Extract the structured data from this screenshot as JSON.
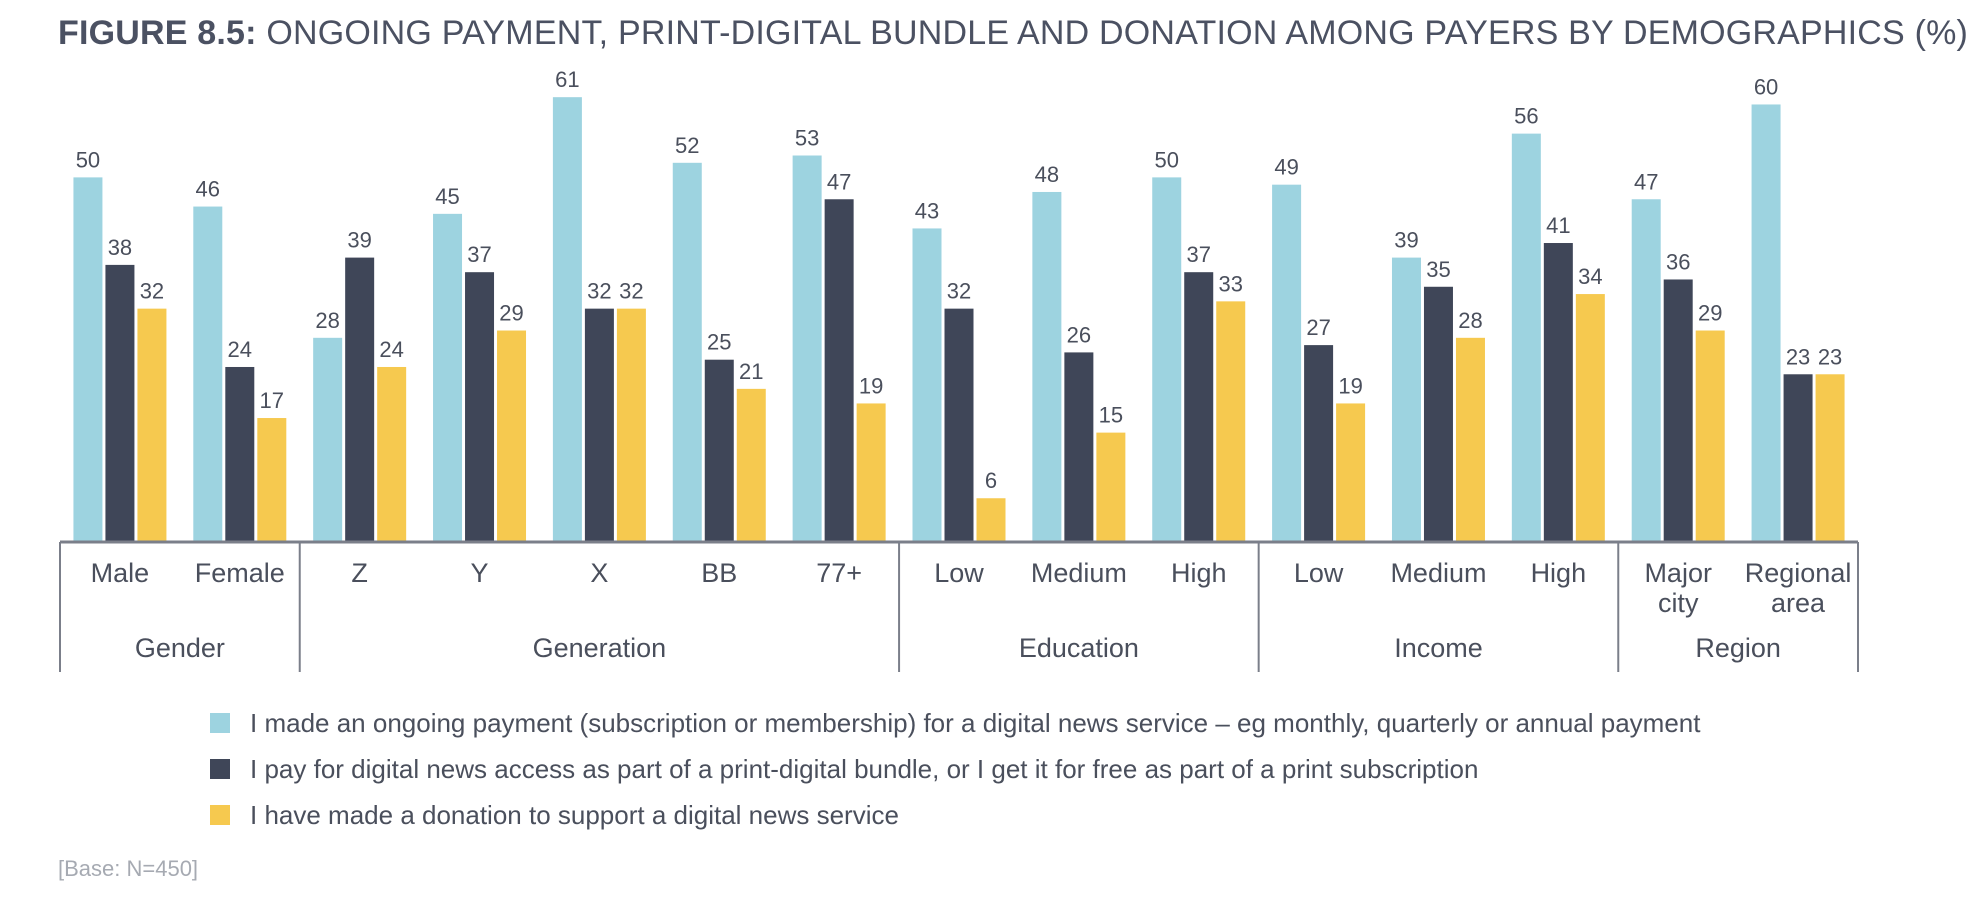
{
  "title": {
    "prefix": "FIGURE 8.5:",
    "text": " ONGOING PAYMENT, PRINT-DIGITAL BUNDLE AND DONATION AMONG PAYERS BY DEMOGRAPHICS (%)"
  },
  "note": "[Base: N=450]",
  "colors": {
    "ongoing": "#9dd3e0",
    "bundle": "#3f4658",
    "donation": "#f6c94f",
    "axis": "#7b7f8a"
  },
  "chart_data": {
    "type": "bar",
    "title": "FIGURE 8.5: ONGOING PAYMENT, PRINT-DIGITAL BUNDLE AND DONATION AMONG PAYERS BY DEMOGRAPHICS (%)",
    "ylim": [
      0,
      65
    ],
    "grid": false,
    "legend_position": "bottom",
    "groups": [
      {
        "name": "Gender",
        "categories": [
          "Male",
          "Female"
        ]
      },
      {
        "name": "Generation",
        "categories": [
          "Z",
          "Y",
          "X",
          "BB",
          "77+"
        ]
      },
      {
        "name": "Education",
        "categories": [
          "Low",
          "Medium",
          "High"
        ]
      },
      {
        "name": "Income",
        "categories": [
          "Low",
          "Medium",
          "High"
        ]
      },
      {
        "name": "Region",
        "categories": [
          "Major city",
          "Regional area"
        ]
      }
    ],
    "categories": [
      "Male",
      "Female",
      "Z",
      "Y",
      "X",
      "BB",
      "77+",
      "Low",
      "Medium",
      "High",
      "Low",
      "Medium",
      "High",
      "Major city",
      "Regional area"
    ],
    "category_lines": [
      [
        "Male"
      ],
      [
        "Female"
      ],
      [
        "Z"
      ],
      [
        "Y"
      ],
      [
        "X"
      ],
      [
        "BB"
      ],
      [
        "77+"
      ],
      [
        "Low"
      ],
      [
        "Medium"
      ],
      [
        "High"
      ],
      [
        "Low"
      ],
      [
        "Medium"
      ],
      [
        "High"
      ],
      [
        "Major",
        "city"
      ],
      [
        "Regional",
        "area"
      ]
    ],
    "series": [
      {
        "name": "I made an ongoing payment (subscription or membership) for a digital news service – eg monthly, quarterly or annual payment",
        "color": "#9dd3e0",
        "values": [
          50,
          46,
          28,
          45,
          61,
          52,
          53,
          43,
          48,
          50,
          49,
          39,
          56,
          47,
          60
        ]
      },
      {
        "name": "I pay for digital news access as part of a print-digital bundle, or I get it for free as part of a print subscription",
        "color": "#3f4658",
        "values": [
          38,
          24,
          39,
          37,
          32,
          25,
          47,
          32,
          26,
          37,
          27,
          35,
          41,
          36,
          23
        ]
      },
      {
        "name": "I have made a donation to support a digital news service",
        "color": "#f6c94f",
        "values": [
          32,
          17,
          24,
          29,
          32,
          21,
          19,
          6,
          15,
          33,
          19,
          28,
          34,
          29,
          23
        ]
      }
    ]
  }
}
